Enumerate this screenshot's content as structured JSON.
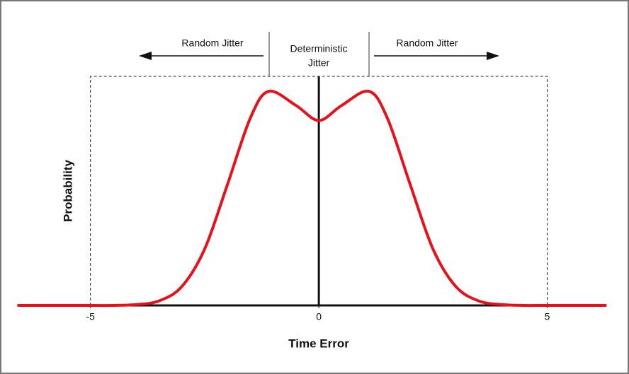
{
  "chart_data": {
    "type": "line",
    "annotations": [
      "Random Jitter",
      "Deterministic",
      "Jitter",
      "Random Jitter"
    ],
    "xlabel": "Time Error",
    "ylabel": "Probability",
    "x": [
      -6.6,
      -5,
      -4.5,
      -4,
      -3.5,
      -3,
      -2.5,
      -2,
      -1.5,
      -1.1,
      -0.5,
      0,
      0.5,
      1.1,
      1.5,
      2,
      2.5,
      3,
      3.5,
      4,
      4.5,
      5,
      6.3
    ],
    "series": [
      {
        "color": "#e8101a",
        "values": [
          0,
          0,
          0,
          0.004,
          0.021,
          0.088,
          0.263,
          0.565,
          0.875,
          1.0,
          0.934,
          0.864,
          0.934,
          1.0,
          0.875,
          0.565,
          0.263,
          0.088,
          0.021,
          0.004,
          0,
          0,
          0
        ]
      }
    ],
    "xlim": [
      -6.67,
      6.31
    ],
    "xticks": [
      -5,
      0,
      5
    ],
    "ylim": [
      0,
      1.07
    ],
    "grid": false
  }
}
